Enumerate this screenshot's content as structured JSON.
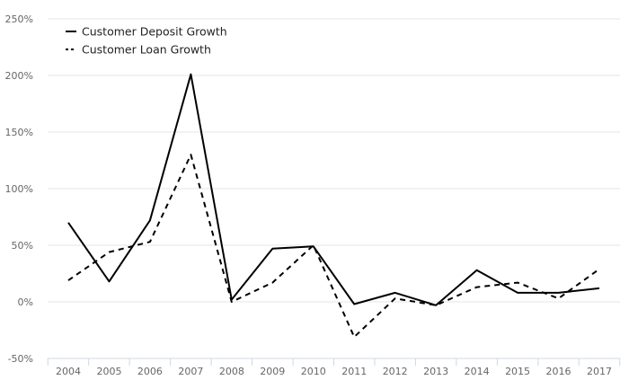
{
  "chart_data": {
    "type": "line",
    "categories": [
      "2004",
      "2005",
      "2006",
      "2007",
      "2008",
      "2009",
      "2010",
      "2011",
      "2012",
      "2013",
      "2014",
      "2015",
      "2016",
      "2017"
    ],
    "series": [
      {
        "name": "Customer Deposit Growth",
        "values": [
          70,
          18,
          72,
          201,
          2,
          47,
          49,
          -2,
          8,
          -3,
          28,
          8,
          8,
          12
        ],
        "color": "#000000",
        "dash": "solid"
      },
      {
        "name": "Customer Loan Growth",
        "values": [
          19,
          44,
          53,
          130,
          0,
          17,
          50,
          -31,
          3,
          -3,
          13,
          17,
          3,
          29
        ],
        "color": "#000000",
        "dash": "dashed"
      }
    ],
    "yticks": [
      -50,
      0,
      50,
      100,
      150,
      200,
      250
    ],
    "ytick_labels": [
      "-50%",
      "0%",
      "50%",
      "100%",
      "150%",
      "200%",
      "250%"
    ],
    "ylim": [
      -50,
      250
    ],
    "xlabel": "",
    "ylabel": "",
    "title": "",
    "grid": true,
    "legend": "top-left"
  }
}
